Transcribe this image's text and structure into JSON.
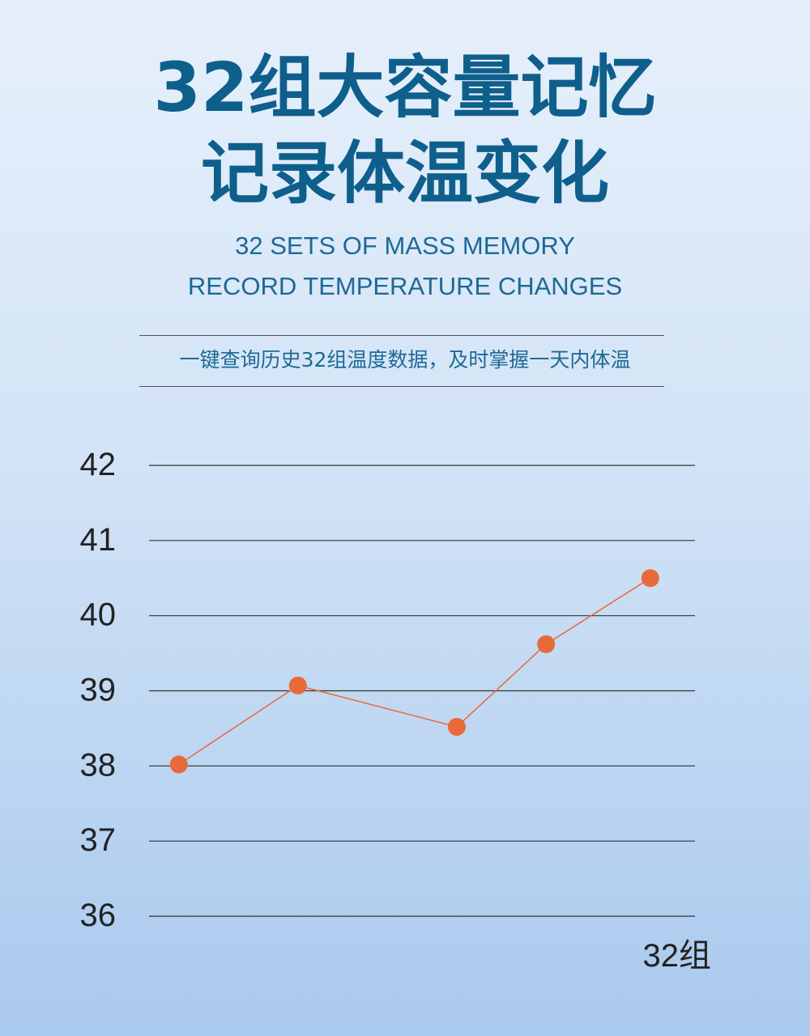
{
  "header": {
    "title_line1": "32组大容量记忆",
    "title_line2": "记录体温变化",
    "subtitle_line1": "32 SETS OF MASS MEMORY",
    "subtitle_line2": "RECORD TEMPERATURE CHANGES",
    "tagline": "一键查询历史32组温度数据，及时掌握一天内体温"
  },
  "colors": {
    "title": "#0f5f8c",
    "line": "#e8693a",
    "marker": "#e8693a",
    "gridline": "#333333"
  },
  "chart_data": {
    "type": "line",
    "title": "",
    "xlabel": "32组",
    "ylabel": "",
    "ylim": [
      36,
      42
    ],
    "y_ticks": [
      "42",
      "41",
      "40",
      "39",
      "38",
      "37",
      "36"
    ],
    "grid": true,
    "series": [
      {
        "x": [
          1,
          2.2,
          3.8,
          4.7,
          5.75
        ],
        "values": [
          38.02,
          39.07,
          38.52,
          39.62,
          40.5
        ]
      }
    ],
    "x_range": [
      0.7,
      6.2
    ]
  }
}
